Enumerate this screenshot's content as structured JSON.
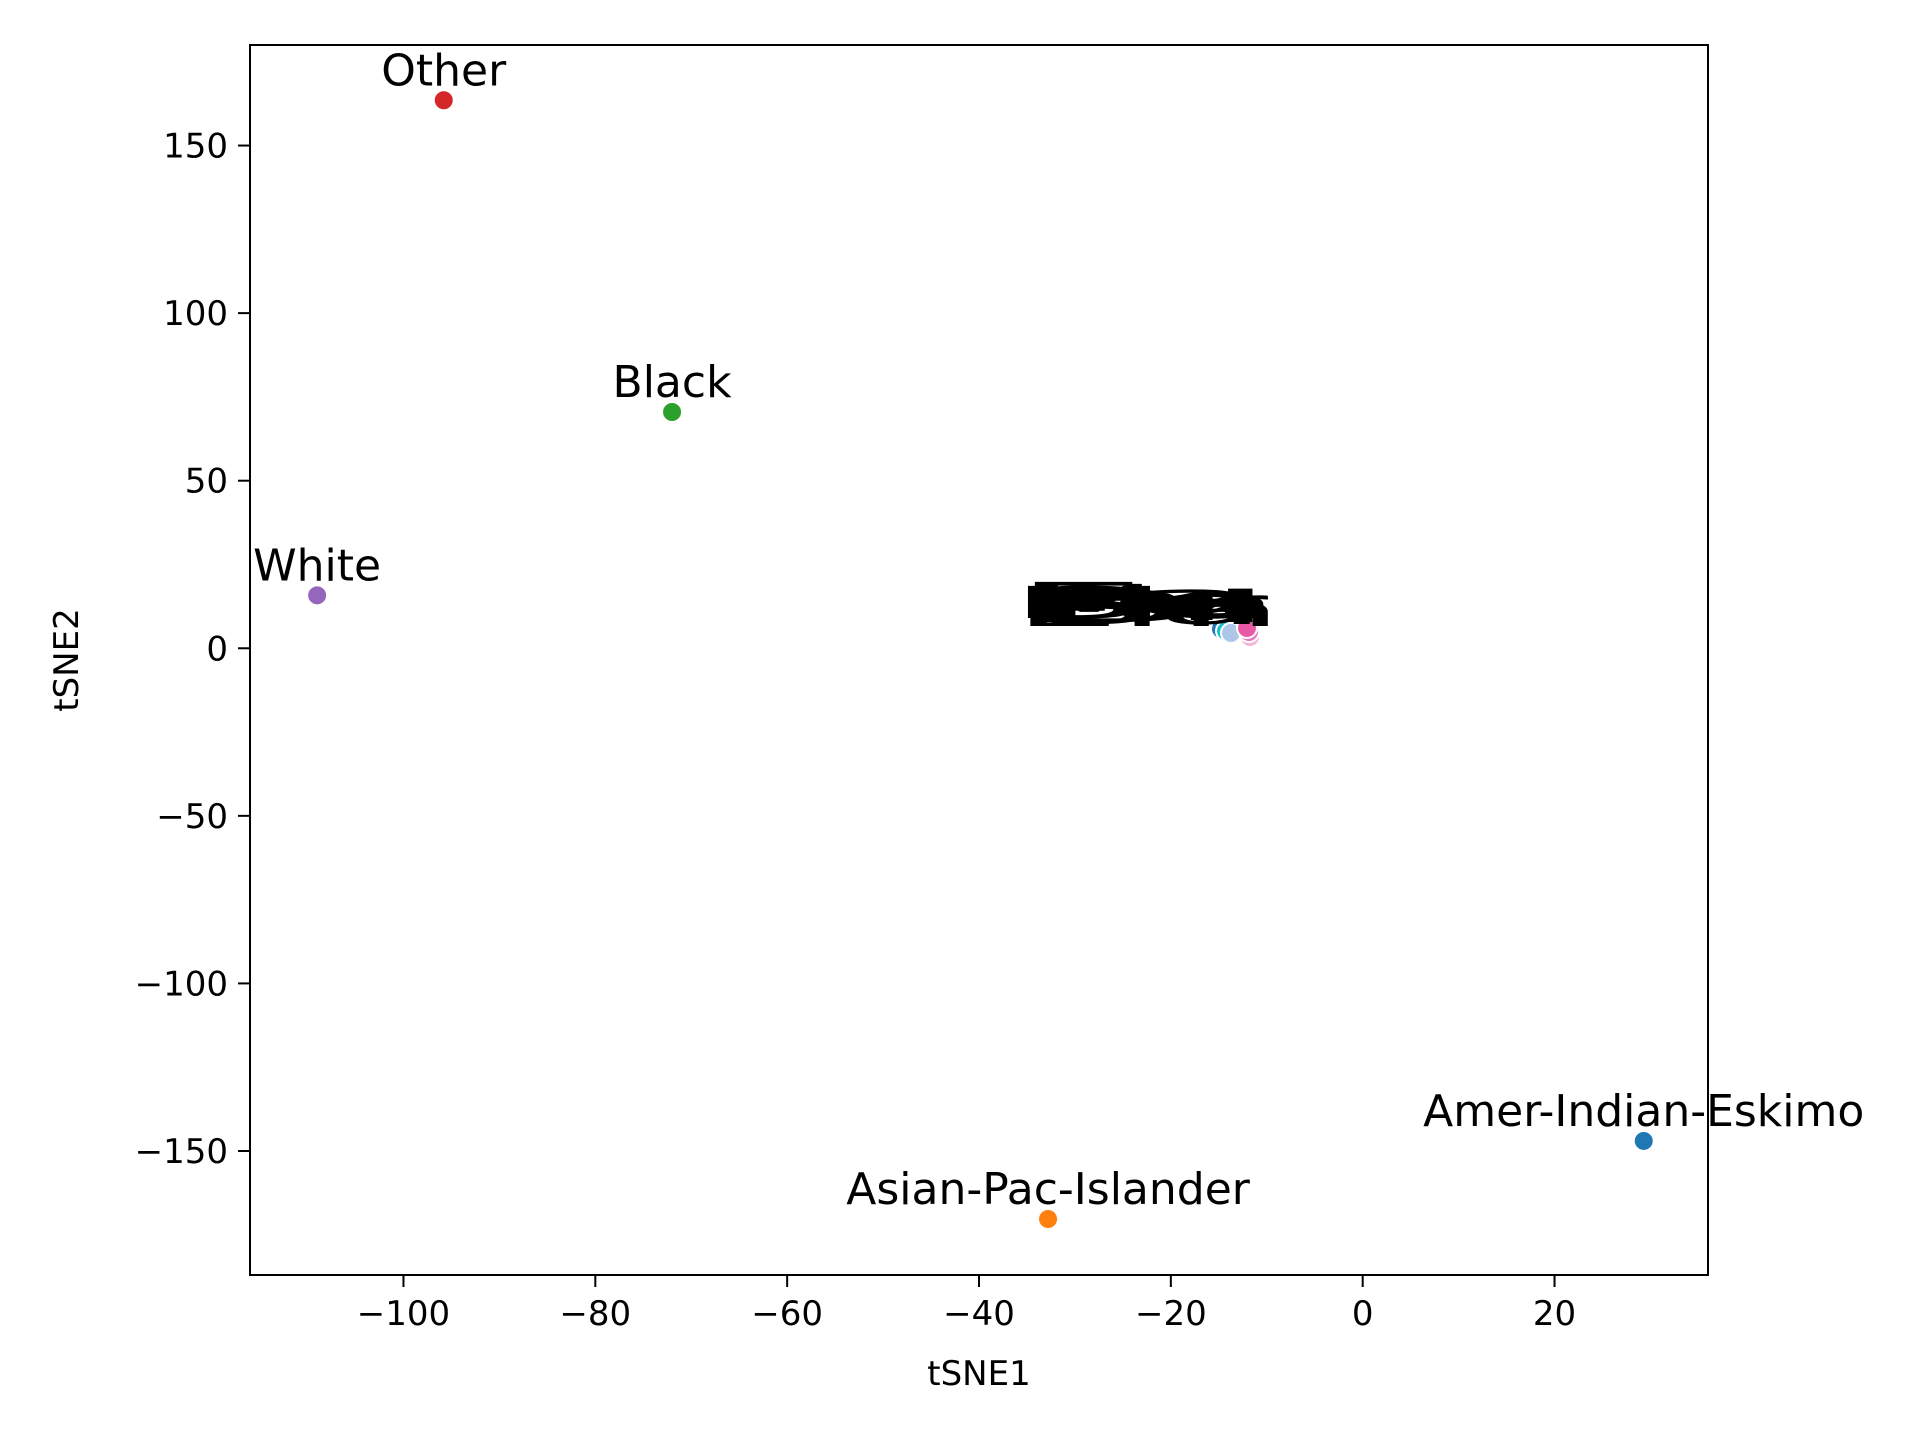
{
  "chart_data": {
    "type": "scatter",
    "title": "",
    "xlabel": "tSNE1",
    "ylabel": "tSNE2",
    "xlim": [
      -116,
      36
    ],
    "ylim": [
      -187,
      180
    ],
    "xticks": [
      -100,
      -80,
      -60,
      -40,
      -20,
      0,
      20
    ],
    "yticks": [
      -150,
      -100,
      -50,
      0,
      50,
      100,
      150
    ],
    "xtick_labels": [
      "−100",
      "−80",
      "−60",
      "−40",
      "−20",
      "0",
      "20"
    ],
    "ytick_labels": [
      "−150",
      "−100",
      "−50",
      "0",
      "50",
      "100",
      "150"
    ],
    "grid": false,
    "legend": "none",
    "points": [
      {
        "label": "Other",
        "x": -95.8,
        "y": 163.5,
        "color": "#d62728"
      },
      {
        "label": "Black",
        "x": -72.0,
        "y": 70.5,
        "color": "#2ca02c"
      },
      {
        "label": "White",
        "x": -109.0,
        "y": 15.8,
        "color": "#9467bd"
      },
      {
        "label": "Amer-Indian-Eskimo",
        "x": 29.3,
        "y": -147.0,
        "color": "#1f77b4"
      },
      {
        "label": "Asian-Pac-Islander",
        "x": -32.8,
        "y": -170.3,
        "color": "#ff7f0e"
      }
    ]
  }
}
